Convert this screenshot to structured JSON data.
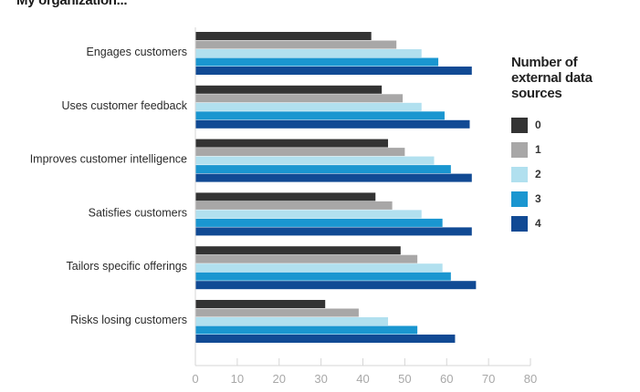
{
  "chart_data": {
    "type": "bar",
    "orientation": "horizontal",
    "title": "My organization...",
    "xlabel": "",
    "ylabel": "",
    "xlim": [
      0,
      80
    ],
    "x_ticks": [
      0,
      10,
      20,
      30,
      40,
      50,
      60,
      70,
      80
    ],
    "grid": false,
    "legend_title": "Number of external data sources",
    "legend_position": "right",
    "categories": [
      "Engages customers",
      "Uses customer feedback",
      "Improves customer intelligence",
      "Satisfies customers",
      "Tailors specific offerings",
      "Risks losing customers"
    ],
    "series": [
      {
        "name": "0",
        "color": "#333333",
        "values": [
          42,
          44.5,
          46,
          43,
          49,
          31
        ]
      },
      {
        "name": "1",
        "color": "#a8a7a7",
        "values": [
          48,
          49.5,
          50,
          47,
          53,
          39
        ]
      },
      {
        "name": "2",
        "color": "#b1e0ef",
        "values": [
          54,
          54,
          57,
          54,
          59,
          46
        ]
      },
      {
        "name": "3",
        "color": "#1a96d0",
        "values": [
          58,
          59.5,
          61,
          59,
          61,
          53
        ]
      },
      {
        "name": "4",
        "color": "#114a94",
        "values": [
          66,
          65.5,
          66,
          66,
          67,
          62
        ]
      }
    ]
  }
}
